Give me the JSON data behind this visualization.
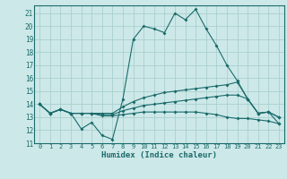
{
  "bg_color": "#cde8e8",
  "grid_color": "#aacfcf",
  "line_color": "#1a6b6b",
  "xlabel": "Humidex (Indice chaleur)",
  "xlim": [
    -0.5,
    23.5
  ],
  "ylim": [
    11,
    21.6
  ],
  "yticks": [
    11,
    12,
    13,
    14,
    15,
    16,
    17,
    18,
    19,
    20,
    21
  ],
  "xticks": [
    0,
    1,
    2,
    3,
    4,
    5,
    6,
    7,
    8,
    9,
    10,
    11,
    12,
    13,
    14,
    15,
    16,
    17,
    18,
    19,
    20,
    21,
    22,
    23
  ],
  "lines": [
    [
      14.0,
      13.3,
      13.6,
      13.3,
      12.1,
      12.6,
      11.6,
      11.3,
      14.4,
      19.0,
      20.0,
      19.8,
      19.5,
      21.0,
      20.5,
      21.3,
      19.8,
      18.5,
      17.0,
      15.8,
      14.4,
      13.3,
      13.4,
      12.5
    ],
    [
      14.0,
      13.3,
      13.6,
      13.3,
      13.3,
      13.3,
      13.3,
      13.3,
      13.8,
      14.2,
      14.5,
      14.7,
      14.9,
      15.0,
      15.1,
      15.2,
      15.3,
      15.4,
      15.5,
      15.7,
      14.4,
      13.3,
      13.4,
      13.0
    ],
    [
      14.0,
      13.3,
      13.6,
      13.3,
      13.3,
      13.3,
      13.2,
      13.2,
      13.5,
      13.7,
      13.9,
      14.0,
      14.1,
      14.2,
      14.3,
      14.4,
      14.5,
      14.6,
      14.7,
      14.7,
      14.4,
      13.3,
      13.4,
      13.0
    ],
    [
      14.0,
      13.3,
      13.6,
      13.3,
      13.3,
      13.3,
      13.1,
      13.1,
      13.2,
      13.3,
      13.4,
      13.4,
      13.4,
      13.4,
      13.4,
      13.4,
      13.3,
      13.2,
      13.0,
      12.9,
      12.9,
      12.8,
      12.7,
      12.5
    ]
  ]
}
